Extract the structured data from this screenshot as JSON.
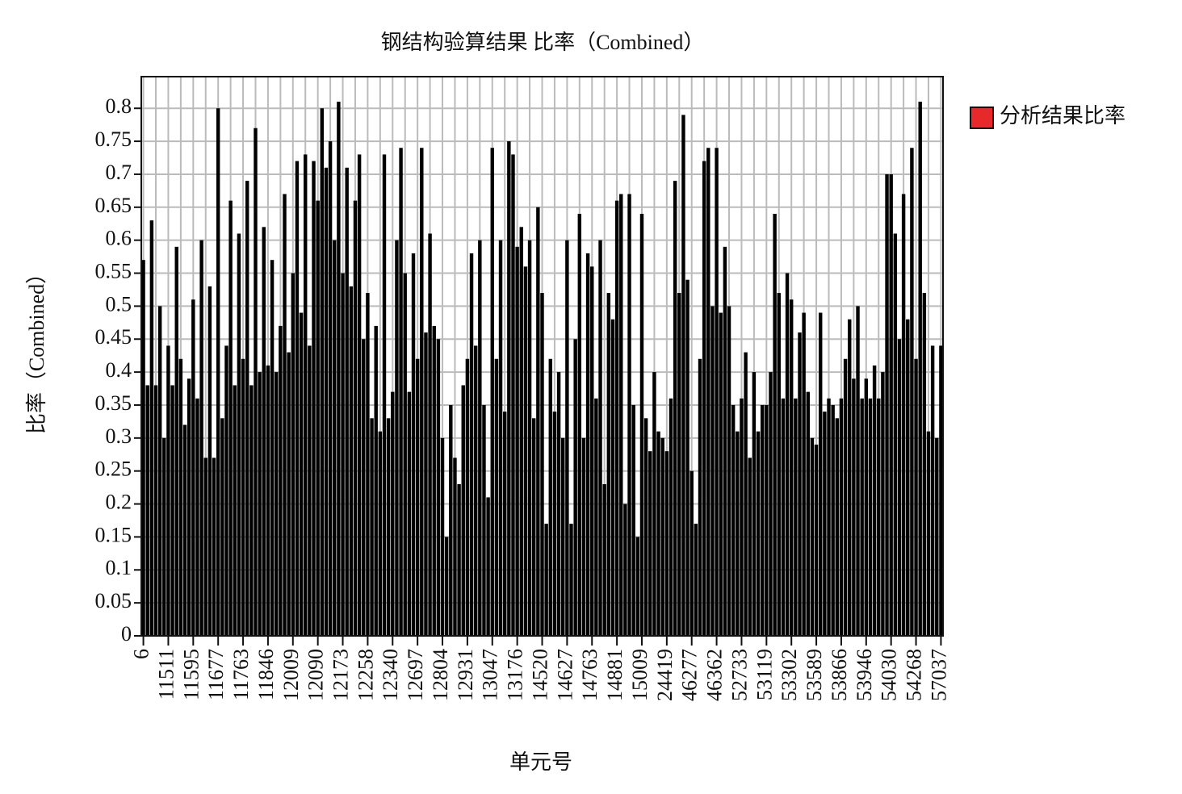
{
  "chart_data": {
    "type": "bar",
    "title": "钢结构验算结果 比率（Combined）",
    "xlabel": "单元号",
    "ylabel": "比率（Combined）",
    "categories": [
      "6",
      null,
      null,
      null,
      null,
      null,
      "11511",
      null,
      null,
      null,
      null,
      null,
      "11595",
      null,
      null,
      null,
      null,
      null,
      "11677",
      null,
      null,
      null,
      null,
      null,
      "11763",
      null,
      null,
      null,
      null,
      null,
      "11846",
      null,
      null,
      null,
      null,
      null,
      "12009",
      null,
      null,
      null,
      null,
      null,
      "12090",
      null,
      null,
      null,
      null,
      null,
      "12173",
      null,
      null,
      null,
      null,
      null,
      "12258",
      null,
      null,
      null,
      null,
      null,
      "12340",
      null,
      null,
      null,
      null,
      null,
      "12697",
      null,
      null,
      null,
      null,
      null,
      "12804",
      null,
      null,
      null,
      null,
      null,
      "12931",
      null,
      null,
      null,
      null,
      null,
      "13047",
      null,
      null,
      null,
      null,
      null,
      "13176",
      null,
      null,
      null,
      null,
      null,
      "14520",
      null,
      null,
      null,
      null,
      null,
      "14627",
      null,
      null,
      null,
      null,
      null,
      "14763",
      null,
      null,
      null,
      null,
      null,
      "14881",
      null,
      null,
      null,
      null,
      null,
      "15009",
      null,
      null,
      null,
      null,
      null,
      "24419",
      null,
      null,
      null,
      null,
      null,
      "46277",
      null,
      null,
      null,
      null,
      null,
      "46362",
      null,
      null,
      null,
      null,
      null,
      "52733",
      null,
      null,
      null,
      null,
      null,
      "53119",
      null,
      null,
      null,
      null,
      null,
      "53302",
      null,
      null,
      null,
      null,
      null,
      "53589",
      null,
      null,
      null,
      null,
      null,
      "53866",
      null,
      null,
      null,
      null,
      null,
      "53946",
      null,
      null,
      null,
      null,
      null,
      "54030",
      null,
      null,
      null,
      null,
      null,
      "54268",
      null,
      null,
      null,
      null,
      null,
      "57037"
    ],
    "series": [
      {
        "name": "分析结果比率",
        "color": "#e8292b",
        "values": [
          0.57,
          0.38,
          0.63,
          0.38,
          0.5,
          0.3,
          0.44,
          0.38,
          0.59,
          0.42,
          0.32,
          0.39,
          0.51,
          0.36,
          0.6,
          0.27,
          0.53,
          0.27,
          0.8,
          0.33,
          0.44,
          0.66,
          0.38,
          0.61,
          0.42,
          0.69,
          0.38,
          0.77,
          0.4,
          0.62,
          0.41,
          0.57,
          0.4,
          0.47,
          0.67,
          0.43,
          0.55,
          0.72,
          0.49,
          0.73,
          0.44,
          0.72,
          0.66,
          0.8,
          0.71,
          0.75,
          0.6,
          0.81,
          0.55,
          0.71,
          0.53,
          0.66,
          0.73,
          0.45,
          0.52,
          0.33,
          0.47,
          0.31,
          0.73,
          0.33,
          0.37,
          0.6,
          0.74,
          0.55,
          0.37,
          0.58,
          0.42,
          0.74,
          0.46,
          0.61,
          0.47,
          0.45,
          0.3,
          0.15,
          0.35,
          0.27,
          0.23,
          0.38,
          0.42,
          0.58,
          0.44,
          0.6,
          0.35,
          0.21,
          0.74,
          0.42,
          0.6,
          0.34,
          0.75,
          0.73,
          0.59,
          0.62,
          0.56,
          0.6,
          0.33,
          0.65,
          0.52,
          0.17,
          0.42,
          0.34,
          0.4,
          0.3,
          0.6,
          0.17,
          0.45,
          0.64,
          0.3,
          0.58,
          0.56,
          0.36,
          0.6,
          0.23,
          0.52,
          0.48,
          0.66,
          0.67,
          0.2,
          0.67,
          0.35,
          0.15,
          0.64,
          0.33,
          0.28,
          0.4,
          0.31,
          0.3,
          0.28,
          0.36,
          0.69,
          0.52,
          0.79,
          0.54,
          0.25,
          0.17,
          0.42,
          0.72,
          0.74,
          0.5,
          0.74,
          0.49,
          0.59,
          0.5,
          0.35,
          0.31,
          0.36,
          0.43,
          0.27,
          0.4,
          0.31,
          0.35,
          0.35,
          0.4,
          0.64,
          0.52,
          0.36,
          0.55,
          0.51,
          0.36,
          0.46,
          0.49,
          0.37,
          0.3,
          0.29,
          0.49,
          0.34,
          0.36,
          0.35,
          0.33,
          0.36,
          0.42,
          0.48,
          0.39,
          0.5,
          0.36,
          0.39,
          0.36,
          0.41,
          0.36,
          0.4,
          0.7,
          0.7,
          0.61,
          0.45,
          0.67,
          0.48,
          0.74,
          0.42,
          0.81,
          0.52,
          0.31,
          0.44,
          0.3,
          0.44
        ]
      }
    ],
    "bar_color": "#000000",
    "ylim": [
      0,
      0.848
    ],
    "yticks": [
      0,
      0.05,
      0.1,
      0.15,
      0.2,
      0.25,
      0.3,
      0.35,
      0.4,
      0.45,
      0.5,
      0.55,
      0.6,
      0.65,
      0.7,
      0.75,
      0.8
    ],
    "grid": true,
    "legend": "right"
  }
}
